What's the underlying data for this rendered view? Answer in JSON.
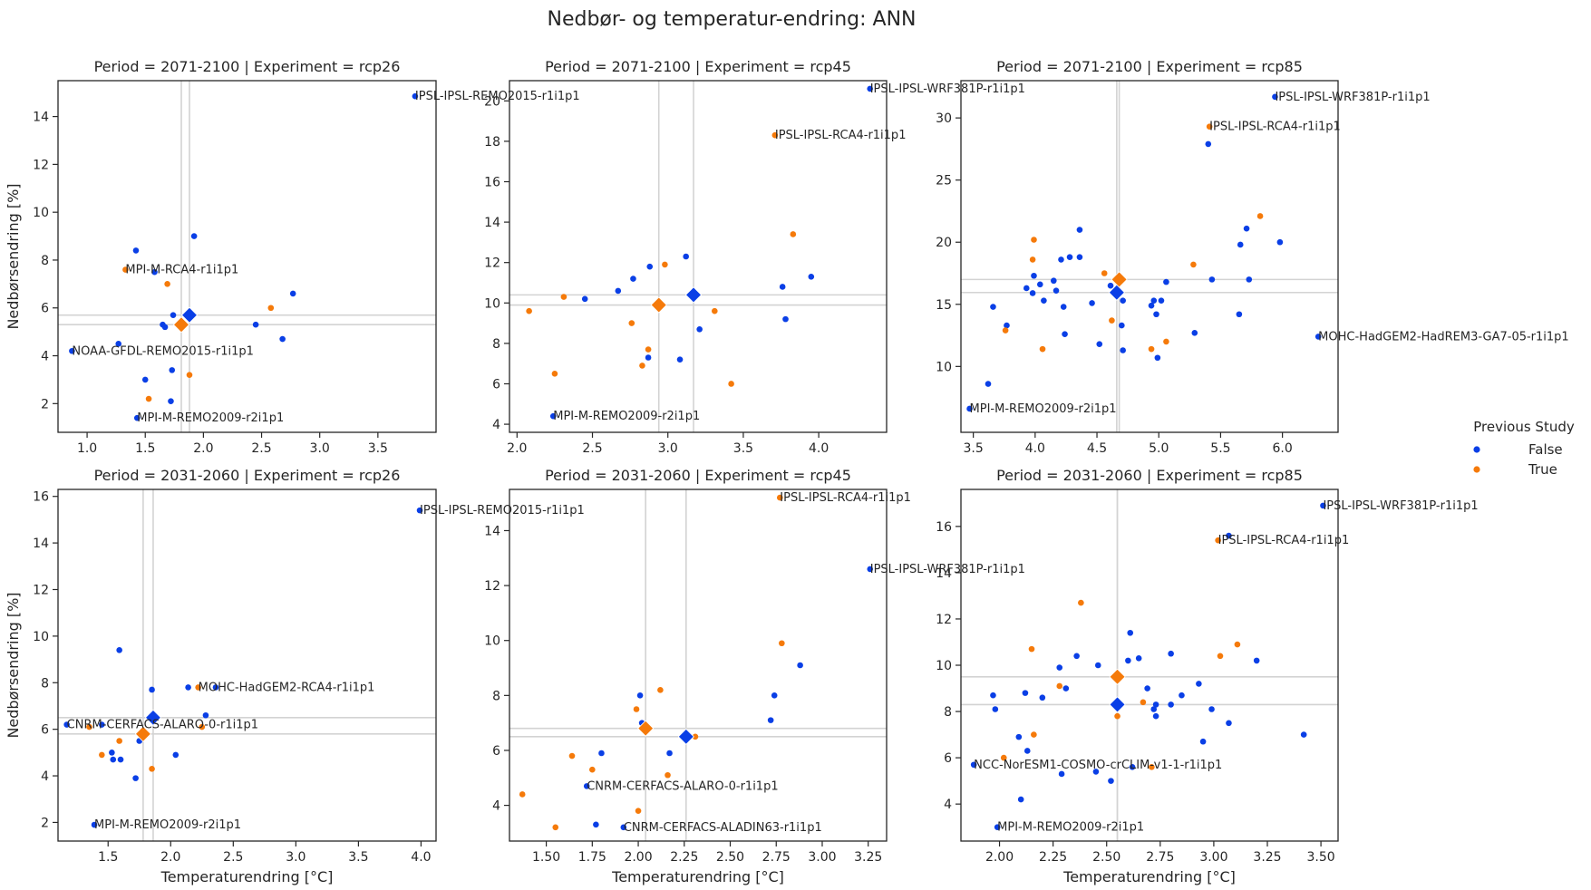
{
  "figure_title": "Nedbør- og temperatur-endring: ANN",
  "legend": {
    "title": "Previous Study",
    "entries": [
      {
        "label": "False",
        "color": "#0a3fe6"
      },
      {
        "label": "True",
        "color": "#f57a0a"
      }
    ]
  },
  "colors": {
    "false": "#0a3fe6",
    "true": "#f57a0a",
    "reference_lines": "#d3d3d3"
  },
  "chart_data": [
    {
      "type": "scatter",
      "title": "Period = 2071-2100 | Experiment = rcp26",
      "xlabel": "",
      "ylabel": "Nedbørsendring [%]",
      "xlim": [
        0.75,
        4.0
      ],
      "ylim": [
        0.8,
        15.5
      ],
      "xticks": [
        "1.0",
        "1.5",
        "2.0",
        "2.5",
        "3.0",
        "3.5"
      ],
      "yticks": [
        "2",
        "4",
        "6",
        "8",
        "10",
        "12",
        "14"
      ],
      "false_points": [
        [
          3.82,
          14.85
        ],
        [
          1.92,
          9.0
        ],
        [
          1.42,
          8.4
        ],
        [
          1.58,
          7.5
        ],
        [
          2.77,
          6.6
        ],
        [
          1.74,
          5.7
        ],
        [
          1.65,
          5.3
        ],
        [
          1.67,
          5.2
        ],
        [
          2.45,
          5.3
        ],
        [
          2.68,
          4.7
        ],
        [
          1.27,
          4.5
        ],
        [
          0.87,
          4.2
        ],
        [
          1.73,
          3.4
        ],
        [
          1.5,
          3.0
        ],
        [
          1.72,
          2.1
        ],
        [
          1.43,
          1.4
        ]
      ],
      "true_points": [
        [
          1.33,
          7.6
        ],
        [
          1.69,
          7.0
        ],
        [
          2.58,
          6.0
        ],
        [
          1.88,
          5.8
        ],
        [
          1.88,
          3.2
        ],
        [
          1.53,
          2.2
        ]
      ],
      "mean_false": [
        1.88,
        5.7
      ],
      "mean_true": [
        1.81,
        5.3
      ],
      "annotations": [
        {
          "text": "IPSL-IPSL-REMO2015-r1i1p1",
          "x": 3.82,
          "y": 14.85
        },
        {
          "text": "MPI-M-RCA4-r1i1p1",
          "x": 1.33,
          "y": 7.6
        },
        {
          "text": "NOAA-GFDL-REMO2015-r1i1p1",
          "x": 0.87,
          "y": 4.2
        },
        {
          "text": "MPI-M-REMO2009-r2i1p1",
          "x": 1.43,
          "y": 1.4
        }
      ]
    },
    {
      "type": "scatter",
      "title": "Period = 2071-2100 | Experiment = rcp45",
      "xlabel": "",
      "ylabel": "",
      "xlim": [
        1.95,
        4.45
      ],
      "ylim": [
        3.6,
        21.0
      ],
      "xticks": [
        "2.0",
        "2.5",
        "3.0",
        "3.5",
        "4.0"
      ],
      "yticks": [
        "4",
        "6",
        "8",
        "10",
        "12",
        "14",
        "16",
        "18",
        "20"
      ],
      "false_points": [
        [
          4.34,
          20.6
        ],
        [
          3.12,
          12.3
        ],
        [
          2.88,
          11.8
        ],
        [
          2.77,
          11.2
        ],
        [
          3.95,
          11.3
        ],
        [
          3.76,
          10.8
        ],
        [
          2.45,
          10.2
        ],
        [
          2.67,
          10.6
        ],
        [
          3.78,
          9.2
        ],
        [
          3.21,
          8.7
        ],
        [
          2.87,
          7.3
        ],
        [
          3.08,
          7.2
        ],
        [
          2.24,
          4.4
        ]
      ],
      "true_points": [
        [
          3.71,
          18.3
        ],
        [
          3.83,
          13.4
        ],
        [
          2.98,
          11.9
        ],
        [
          2.31,
          10.3
        ],
        [
          2.08,
          9.6
        ],
        [
          3.31,
          9.6
        ],
        [
          2.76,
          9.0
        ],
        [
          2.87,
          7.7
        ],
        [
          2.83,
          6.9
        ],
        [
          2.25,
          6.5
        ],
        [
          3.42,
          6.0
        ]
      ],
      "mean_false": [
        3.17,
        10.4
      ],
      "mean_true": [
        2.94,
        9.9
      ],
      "annotations": [
        {
          "text": "IPSL-IPSL-WRF381P-r1i1p1",
          "x": 4.34,
          "y": 20.6
        },
        {
          "text": "IPSL-IPSL-RCA4-r1i1p1",
          "x": 3.71,
          "y": 18.3
        },
        {
          "text": "MPI-M-REMO2009-r2i1p1",
          "x": 2.24,
          "y": 4.4
        }
      ]
    },
    {
      "type": "scatter",
      "title": "Period = 2071-2100 | Experiment = rcp85",
      "xlabel": "",
      "ylabel": "",
      "xlim": [
        3.4,
        6.45
      ],
      "ylim": [
        4.7,
        33.0
      ],
      "xticks": [
        "3.5",
        "4.0",
        "4.5",
        "5.0",
        "5.5",
        "6.0"
      ],
      "yticks": [
        "10",
        "15",
        "20",
        "25",
        "30"
      ],
      "false_points": [
        [
          5.94,
          31.7
        ],
        [
          5.4,
          27.9
        ],
        [
          5.71,
          21.1
        ],
        [
          5.98,
          20.0
        ],
        [
          5.66,
          19.8
        ],
        [
          4.36,
          21.0
        ],
        [
          4.21,
          18.6
        ],
        [
          4.28,
          18.8
        ],
        [
          4.36,
          18.8
        ],
        [
          3.99,
          17.3
        ],
        [
          3.93,
          16.3
        ],
        [
          4.04,
          16.6
        ],
        [
          4.15,
          16.9
        ],
        [
          5.43,
          17.0
        ],
        [
          5.73,
          17.0
        ],
        [
          4.61,
          16.5
        ],
        [
          4.65,
          15.8
        ],
        [
          4.07,
          15.3
        ],
        [
          4.17,
          16.1
        ],
        [
          3.98,
          15.9
        ],
        [
          4.23,
          14.8
        ],
        [
          4.46,
          15.1
        ],
        [
          4.71,
          15.3
        ],
        [
          4.96,
          15.3
        ],
        [
          5.02,
          15.3
        ],
        [
          4.94,
          14.9
        ],
        [
          5.06,
          16.8
        ],
        [
          4.98,
          14.2
        ],
        [
          3.66,
          14.8
        ],
        [
          3.77,
          13.3
        ],
        [
          4.7,
          13.3
        ],
        [
          5.29,
          12.7
        ],
        [
          5.65,
          14.2
        ],
        [
          4.24,
          12.6
        ],
        [
          4.52,
          11.8
        ],
        [
          4.71,
          11.3
        ],
        [
          4.99,
          10.7
        ],
        [
          6.29,
          12.4
        ],
        [
          3.62,
          8.6
        ],
        [
          3.47,
          6.6
        ]
      ],
      "true_points": [
        [
          5.41,
          29.3
        ],
        [
          5.82,
          22.1
        ],
        [
          3.99,
          20.2
        ],
        [
          3.98,
          18.6
        ],
        [
          4.56,
          17.5
        ],
        [
          5.28,
          18.2
        ],
        [
          4.62,
          13.7
        ],
        [
          5.06,
          12.0
        ],
        [
          4.94,
          11.4
        ],
        [
          4.06,
          11.4
        ],
        [
          3.76,
          12.9
        ]
      ],
      "mean_false": [
        4.66,
        15.95
      ],
      "mean_true": [
        4.68,
        17.0
      ],
      "annotations": [
        {
          "text": "IPSL-IPSL-WRF381P-r1i1p1",
          "x": 5.94,
          "y": 31.7
        },
        {
          "text": "IPSL-IPSL-RCA4-r1i1p1",
          "x": 5.41,
          "y": 29.3
        },
        {
          "text": "MOHC-HadGEM2-HadREM3-GA7-05-r1i1p1",
          "x": 6.29,
          "y": 12.4
        },
        {
          "text": "MPI-M-REMO2009-r2i1p1",
          "x": 3.47,
          "y": 6.6
        }
      ]
    },
    {
      "type": "scatter",
      "title": "Period = 2031-2060 | Experiment = rcp26",
      "xlabel": "Temperaturendring [°C]",
      "ylabel": "Nedbørsendring [%]",
      "xlim": [
        1.1,
        4.12
      ],
      "ylim": [
        1.2,
        16.3
      ],
      "xticks": [
        "1.5",
        "2.0",
        "2.5",
        "3.0",
        "3.5",
        "4.0"
      ],
      "yticks": [
        "2",
        "4",
        "6",
        "8",
        "10",
        "12",
        "14",
        "16"
      ],
      "false_points": [
        [
          3.99,
          15.4
        ],
        [
          1.59,
          9.4
        ],
        [
          1.85,
          7.7
        ],
        [
          2.14,
          7.8
        ],
        [
          2.36,
          7.8
        ],
        [
          2.28,
          6.6
        ],
        [
          1.17,
          6.2
        ],
        [
          1.45,
          6.2
        ],
        [
          1.75,
          5.5
        ],
        [
          1.53,
          5.0
        ],
        [
          1.54,
          4.7
        ],
        [
          1.6,
          4.7
        ],
        [
          2.04,
          4.9
        ],
        [
          1.72,
          3.9
        ],
        [
          1.39,
          1.9
        ]
      ],
      "true_points": [
        [
          2.22,
          7.8
        ],
        [
          1.35,
          6.1
        ],
        [
          2.25,
          6.1
        ],
        [
          1.59,
          5.5
        ],
        [
          1.45,
          4.9
        ],
        [
          1.85,
          4.3
        ]
      ],
      "mean_false": [
        1.86,
        6.5
      ],
      "mean_true": [
        1.78,
        5.8
      ],
      "annotations": [
        {
          "text": "IPSL-IPSL-REMO2015-r1i1p1",
          "x": 3.99,
          "y": 15.4
        },
        {
          "text": "MOHC-HadGEM2-RCA4-r1i1p1",
          "x": 2.22,
          "y": 7.8
        },
        {
          "text": "CNRM-CERFACS-ALARO-0-r1i1p1",
          "x": 1.17,
          "y": 6.2
        },
        {
          "text": "MPI-M-REMO2009-r2i1p1",
          "x": 1.39,
          "y": 1.9
        }
      ]
    },
    {
      "type": "scatter",
      "title": "Period = 2031-2060 | Experiment = rcp45",
      "xlabel": "Temperaturendring [°C]",
      "ylabel": "",
      "xlim": [
        1.3,
        3.35
      ],
      "ylim": [
        2.7,
        15.5
      ],
      "xticks": [
        "1.50",
        "1.75",
        "2.00",
        "2.25",
        "2.50",
        "2.75",
        "3.00",
        "3.25"
      ],
      "yticks": [
        "4",
        "6",
        "8",
        "10",
        "12",
        "14"
      ],
      "false_points": [
        [
          3.26,
          12.6
        ],
        [
          2.88,
          9.1
        ],
        [
          2.74,
          8.0
        ],
        [
          2.72,
          7.1
        ],
        [
          2.01,
          8.0
        ],
        [
          2.02,
          7.0
        ],
        [
          2.17,
          5.9
        ],
        [
          1.8,
          5.9
        ],
        [
          1.72,
          4.7
        ],
        [
          1.77,
          3.3
        ],
        [
          1.92,
          3.2
        ]
      ],
      "true_points": [
        [
          2.77,
          15.2
        ],
        [
          2.78,
          9.9
        ],
        [
          2.12,
          8.2
        ],
        [
          1.99,
          7.5
        ],
        [
          2.31,
          6.5
        ],
        [
          1.64,
          5.8
        ],
        [
          1.75,
          5.3
        ],
        [
          2.16,
          5.1
        ],
        [
          1.37,
          4.4
        ],
        [
          1.55,
          3.2
        ],
        [
          2.0,
          3.8
        ]
      ],
      "mean_false": [
        2.26,
        6.5
      ],
      "mean_true": [
        2.04,
        6.8
      ],
      "annotations": [
        {
          "text": "IPSL-IPSL-RCA4-r1i1p1",
          "x": 2.77,
          "y": 15.2
        },
        {
          "text": "IPSL-IPSL-WRF381P-r1i1p1",
          "x": 3.26,
          "y": 12.6
        },
        {
          "text": "CNRM-CERFACS-ALARO-0-r1i1p1",
          "x": 1.72,
          "y": 4.7
        },
        {
          "text": "CNRM-CERFACS-ALADIN63-r1i1p1",
          "x": 1.92,
          "y": 3.2
        }
      ]
    },
    {
      "type": "scatter",
      "title": "Period = 2031-2060 | Experiment = rcp85",
      "xlabel": "Temperaturendring [°C]",
      "ylabel": "",
      "xlim": [
        1.82,
        3.58
      ],
      "ylim": [
        2.4,
        17.6
      ],
      "xticks": [
        "2.00",
        "2.25",
        "2.50",
        "2.75",
        "3.00",
        "3.25",
        "3.50"
      ],
      "yticks": [
        "4",
        "6",
        "8",
        "10",
        "12",
        "14",
        "16"
      ],
      "false_points": [
        [
          3.51,
          16.9
        ],
        [
          3.07,
          15.6
        ],
        [
          2.61,
          11.4
        ],
        [
          2.8,
          10.5
        ],
        [
          2.65,
          10.3
        ],
        [
          2.6,
          10.2
        ],
        [
          3.2,
          10.2
        ],
        [
          2.36,
          10.4
        ],
        [
          2.46,
          10.0
        ],
        [
          2.28,
          9.9
        ],
        [
          2.69,
          9.0
        ],
        [
          2.93,
          9.2
        ],
        [
          2.85,
          8.7
        ],
        [
          2.31,
          9.0
        ],
        [
          1.97,
          8.7
        ],
        [
          2.12,
          8.8
        ],
        [
          2.2,
          8.6
        ],
        [
          2.73,
          8.3
        ],
        [
          2.8,
          8.3
        ],
        [
          2.99,
          8.1
        ],
        [
          3.07,
          7.5
        ],
        [
          2.72,
          8.1
        ],
        [
          2.55,
          8.4
        ],
        [
          1.98,
          8.1
        ],
        [
          2.09,
          6.9
        ],
        [
          2.13,
          6.3
        ],
        [
          2.95,
          6.7
        ],
        [
          3.42,
          7.0
        ],
        [
          2.73,
          7.8
        ],
        [
          2.29,
          5.3
        ],
        [
          2.45,
          5.4
        ],
        [
          2.52,
          5.0
        ],
        [
          2.62,
          5.6
        ],
        [
          1.88,
          5.7
        ],
        [
          2.1,
          4.2
        ],
        [
          1.99,
          3.0
        ]
      ],
      "true_points": [
        [
          3.02,
          15.4
        ],
        [
          2.38,
          12.7
        ],
        [
          3.11,
          10.9
        ],
        [
          2.15,
          10.7
        ],
        [
          3.03,
          10.4
        ],
        [
          2.28,
          9.1
        ],
        [
          2.67,
          8.4
        ],
        [
          2.55,
          7.8
        ],
        [
          2.16,
          7.0
        ],
        [
          2.71,
          5.6
        ],
        [
          2.02,
          6.0
        ]
      ],
      "mean_false": [
        2.55,
        8.3
      ],
      "mean_true": [
        2.55,
        9.5
      ],
      "annotations": [
        {
          "text": "IPSL-IPSL-WRF381P-r1i1p1",
          "x": 3.51,
          "y": 16.9
        },
        {
          "text": "IPSL-IPSL-RCA4-r1i1p1",
          "x": 3.02,
          "y": 15.4
        },
        {
          "text": "NCC-NorESM1-COSMO-crCLIM-v1-1-r1i1p1",
          "x": 1.88,
          "y": 5.7
        },
        {
          "text": "MPI-M-REMO2009-r2i1p1",
          "x": 1.99,
          "y": 3.0
        }
      ]
    }
  ]
}
